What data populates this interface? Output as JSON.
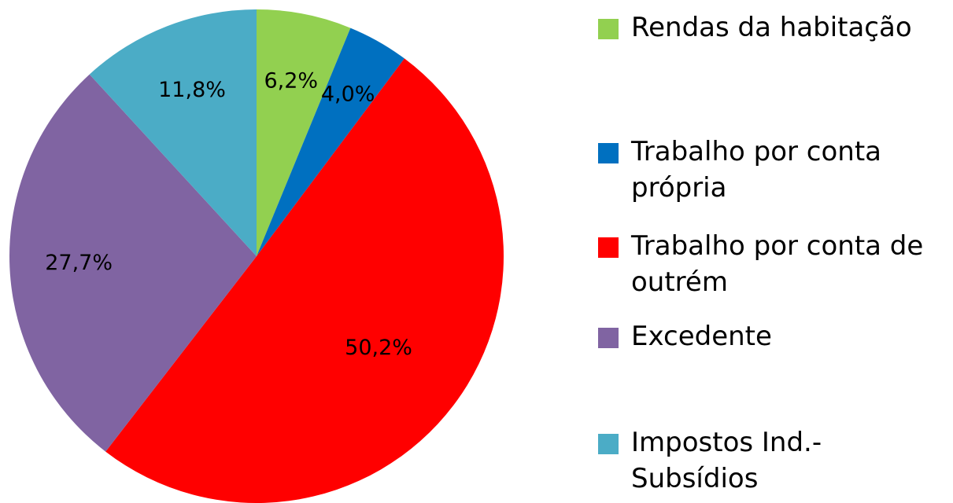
{
  "chart_data": {
    "type": "pie",
    "categories": [
      "Rendas da habitação",
      "Trabalho por conta própria",
      "Trabalho por conta de outrém",
      "Excedente",
      "Impostos Ind.-Subsídios"
    ],
    "values": [
      6.2,
      4.0,
      50.2,
      27.7,
      11.8
    ],
    "value_labels": [
      "6,2%",
      "4,0%",
      "50,2%",
      "27,7%",
      "11,8%"
    ],
    "colors": [
      "#92d050",
      "#0070c0",
      "#ff0000",
      "#8064a2",
      "#4bacc6"
    ],
    "legend": "right"
  }
}
